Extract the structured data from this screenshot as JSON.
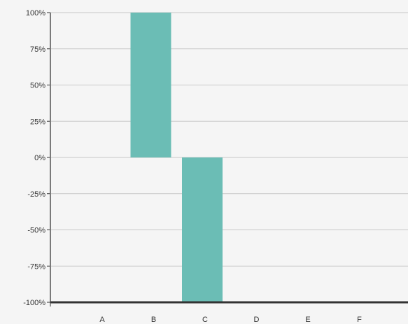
{
  "chart_data": {
    "type": "bar",
    "categories": [
      "A",
      "B",
      "C",
      "D",
      "E",
      "F"
    ],
    "values": [
      0,
      100,
      -100,
      0,
      0,
      0
    ],
    "ylim": [
      -100,
      100
    ],
    "yticks": [
      100,
      75,
      50,
      25,
      0,
      -25,
      -50,
      -75,
      -100
    ],
    "ytick_labels": [
      "100%",
      "75%",
      "50%",
      "25%",
      "0%",
      "-25%",
      "-50%",
      "-75%",
      "-100%"
    ],
    "grid": true,
    "legend": "none",
    "bar_color": "#6bbdb5"
  }
}
